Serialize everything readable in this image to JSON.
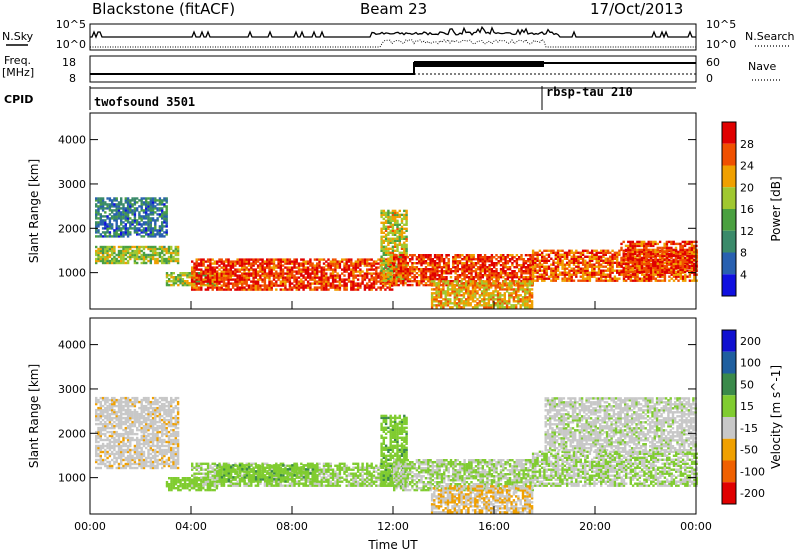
{
  "header": {
    "station": "Blackstone (fitACF)",
    "beam": "Beam 23",
    "date": "17/Oct/2013"
  },
  "summary": {
    "nsky_label": "N.Sky",
    "nsearch_label": "N.Search",
    "nsky_ticks": [
      "10^5",
      "10^0"
    ],
    "nsearch_ticks": [
      "10^5",
      "10^0"
    ],
    "freq_label_1": "Freq.",
    "freq_label_2": "[MHz]",
    "freq_ticks": [
      "18",
      "8"
    ],
    "nave_label": "Nave",
    "nave_ticks": [
      "60",
      "0"
    ],
    "cpid_label": "CPID",
    "cpid_segments": [
      {
        "name": "twofsound 3501",
        "start_hour": 0
      },
      {
        "name": "rbsp-tau 210",
        "start_hour": 18
      }
    ]
  },
  "colors": {
    "power": [
      "#1010e0",
      "#2860b0",
      "#3a8a6a",
      "#4aa040",
      "#a0c830",
      "#f0a000",
      "#f05000",
      "#e00000"
    ],
    "velocity": [
      "#1010d0",
      "#1f5f9f",
      "#3a8a4a",
      "#80cc30",
      "#c8c8c8",
      "#f0a000",
      "#f06000",
      "#e00000"
    ]
  },
  "chart_data": [
    {
      "type": "heatmap",
      "title": "Power",
      "xlabel": "Time UT",
      "ylabel": "Slant Range [km]",
      "x_ticks": [
        "00:00",
        "04:00",
        "08:00",
        "12:00",
        "16:00",
        "20:00",
        "00:00"
      ],
      "y_ticks": [
        "1000",
        "2000",
        "3000",
        "4000"
      ],
      "xlim_hours": [
        0,
        24
      ],
      "ylim_km": [
        180,
        4600
      ],
      "colorbar": {
        "label": "Power [dB]",
        "ticks": [
          "4",
          "8",
          "12",
          "16",
          "20",
          "24",
          "28"
        ],
        "range": [
          0,
          30
        ]
      },
      "echo_bands": [
        {
          "t": [
            0.2,
            3.5
          ],
          "range_km": [
            1200,
            1600
          ],
          "value": 16
        },
        {
          "t": [
            0.2,
            3.0
          ],
          "range_km": [
            1800,
            2700
          ],
          "value": 8
        },
        {
          "t": [
            3.0,
            5.0
          ],
          "range_km": [
            700,
            1000
          ],
          "value": 16
        },
        {
          "t": [
            4.0,
            12.0
          ],
          "range_km": [
            600,
            1300
          ],
          "value": 26
        },
        {
          "t": [
            11.5,
            12.5
          ],
          "range_km": [
            800,
            2400
          ],
          "value": 18
        },
        {
          "t": [
            12.0,
            17.5
          ],
          "range_km": [
            700,
            1400
          ],
          "value": 26
        },
        {
          "t": [
            13.5,
            17.5
          ],
          "range_km": [
            200,
            800
          ],
          "value": 20
        },
        {
          "t": [
            17.5,
            24.0
          ],
          "range_km": [
            800,
            1500
          ],
          "value": 24
        },
        {
          "t": [
            21.0,
            24.0
          ],
          "range_km": [
            1000,
            1700
          ],
          "value": 26
        }
      ]
    },
    {
      "type": "heatmap",
      "title": "Velocity",
      "xlabel": "Time UT",
      "ylabel": "Slant Range [km]",
      "x_ticks": [
        "00:00",
        "04:00",
        "08:00",
        "12:00",
        "16:00",
        "20:00",
        "00:00"
      ],
      "y_ticks": [
        "1000",
        "2000",
        "3000",
        "4000"
      ],
      "xlim_hours": [
        0,
        24
      ],
      "ylim_km": [
        180,
        4600
      ],
      "colorbar": {
        "label": "Velocity [m s^-1]",
        "ticks": [
          "200",
          "100",
          "50",
          "15",
          "-15",
          "-50",
          "-100",
          "-200"
        ],
        "range": [
          -250,
          250
        ]
      },
      "echo_bands": [
        {
          "t": [
            0.2,
            3.5
          ],
          "range_km": [
            1200,
            2800
          ],
          "value": -40
        },
        {
          "t": [
            3.0,
            5.0
          ],
          "range_km": [
            700,
            1000
          ],
          "value": 30
        },
        {
          "t": [
            4.0,
            12.0
          ],
          "range_km": [
            800,
            1300
          ],
          "value": 10
        },
        {
          "t": [
            5.0,
            9.0
          ],
          "range_km": [
            900,
            1300
          ],
          "value": 40
        },
        {
          "t": [
            11.5,
            12.5
          ],
          "range_km": [
            800,
            2400
          ],
          "value": 40
        },
        {
          "t": [
            12.0,
            17.5
          ],
          "range_km": [
            700,
            1400
          ],
          "value": 0
        },
        {
          "t": [
            13.5,
            17.5
          ],
          "range_km": [
            200,
            800
          ],
          "value": -60
        },
        {
          "t": [
            17.5,
            24.0
          ],
          "range_km": [
            800,
            1600
          ],
          "value": 0
        },
        {
          "t": [
            18.0,
            24.0
          ],
          "range_km": [
            1600,
            2800
          ],
          "value": -20
        }
      ]
    }
  ]
}
